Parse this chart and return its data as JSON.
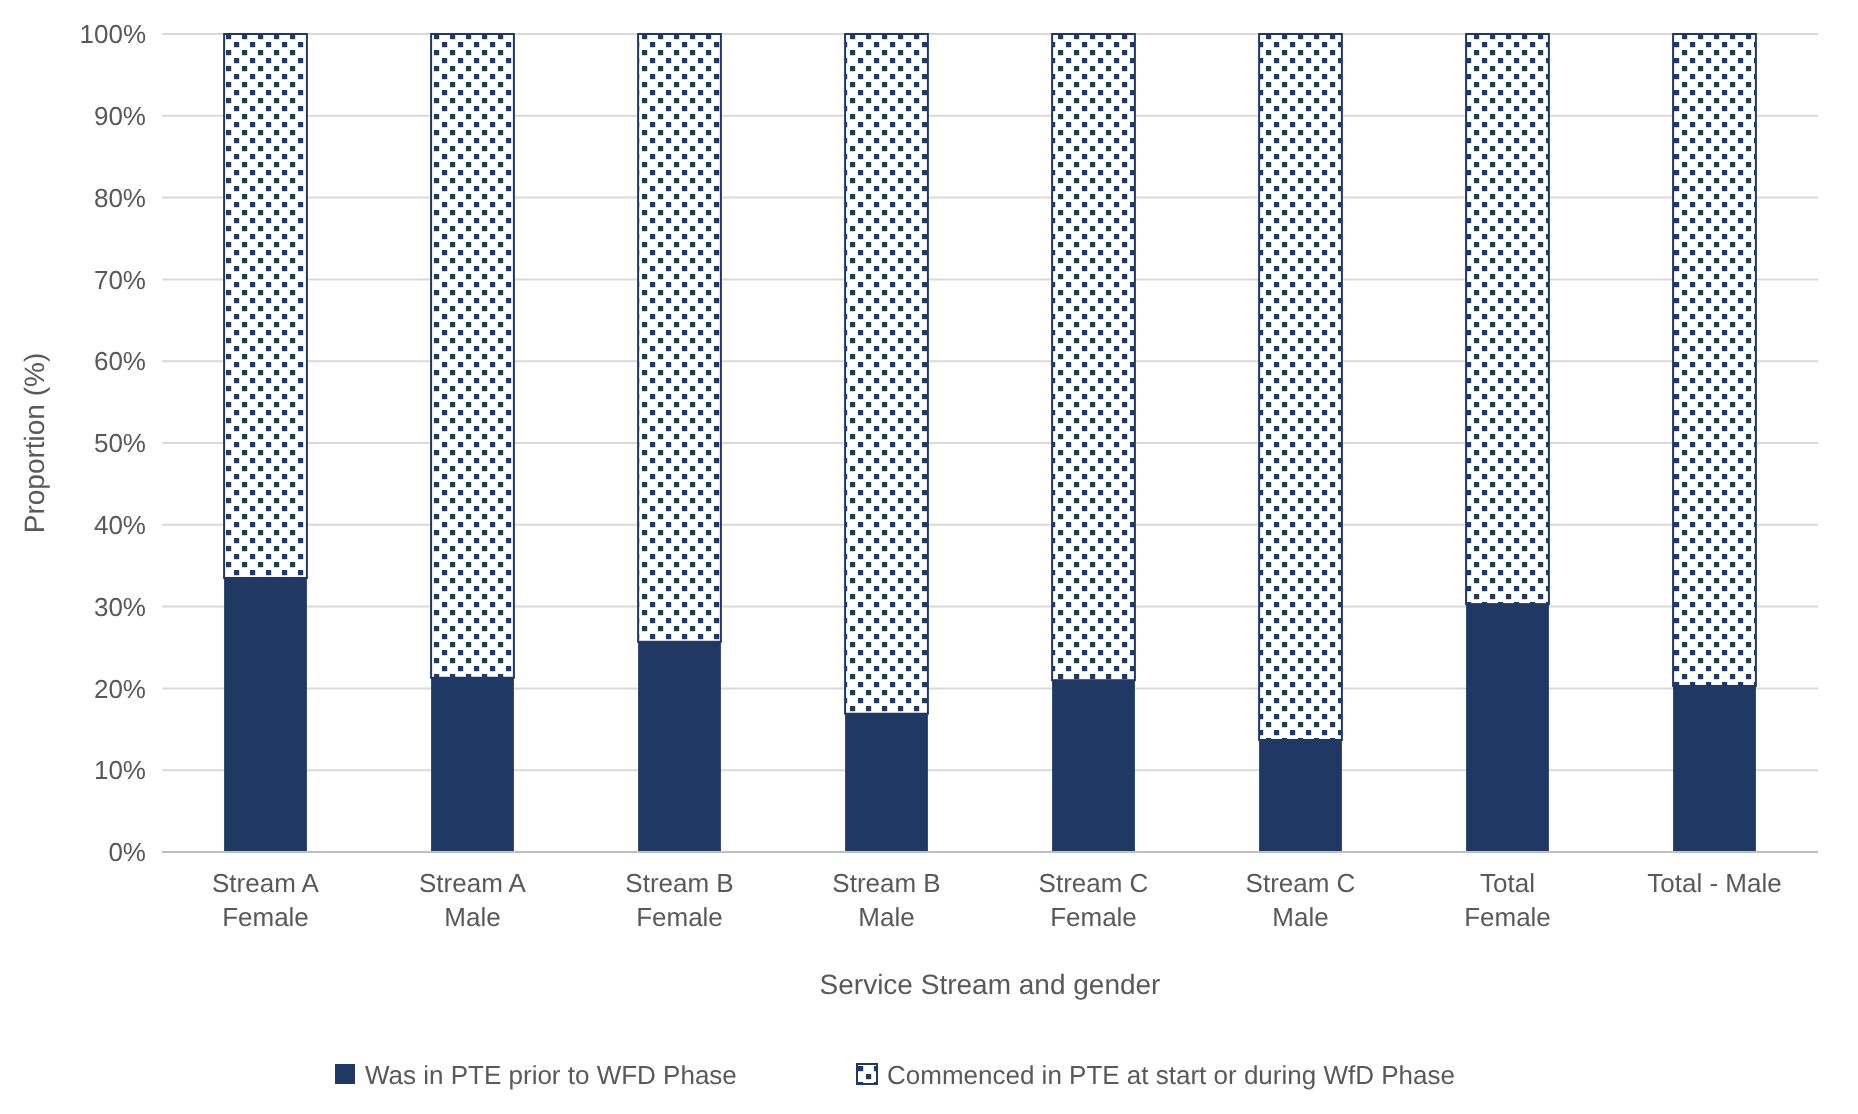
{
  "chart_data": {
    "type": "bar",
    "stacked": true,
    "xlabel": "Service Stream and gender",
    "ylabel": "Proportion (%)",
    "categories": [
      "Stream A\nFemale",
      "Stream A\nMale",
      "Stream B\nFemale",
      "Stream B\nMale",
      "Stream C\nFemale",
      "Stream C\nMale",
      "Total\nFemale",
      "Total - Male"
    ],
    "series": [
      {
        "name": "Was in PTE prior to WFD Phase",
        "color": "#1f3864",
        "values": [
          33.5,
          21.3,
          25.7,
          16.9,
          21,
          13.7,
          30.3,
          20.3
        ]
      },
      {
        "name": "Commenced in PTE at start or during WfD Phase",
        "color": "#1f3864",
        "values": [
          66.5,
          78.7,
          74.3,
          83.1,
          79,
          86.3,
          69.7,
          79.7
        ]
      }
    ],
    "ylim": [
      0,
      100
    ],
    "yticks": [
      {
        "value": 0,
        "label": "0%"
      },
      {
        "value": 10,
        "label": "10%"
      },
      {
        "value": 20,
        "label": "20%"
      },
      {
        "value": 30,
        "label": "30%"
      },
      {
        "value": 40,
        "label": "40%"
      },
      {
        "value": 50,
        "label": "50%"
      },
      {
        "value": 60,
        "label": "60%"
      },
      {
        "value": 70,
        "label": "70%"
      },
      {
        "value": 80,
        "label": "80%"
      },
      {
        "value": 90,
        "label": "90%"
      },
      {
        "value": 100,
        "label": "100%"
      }
    ],
    "grid": "y",
    "legend": "bottom"
  }
}
